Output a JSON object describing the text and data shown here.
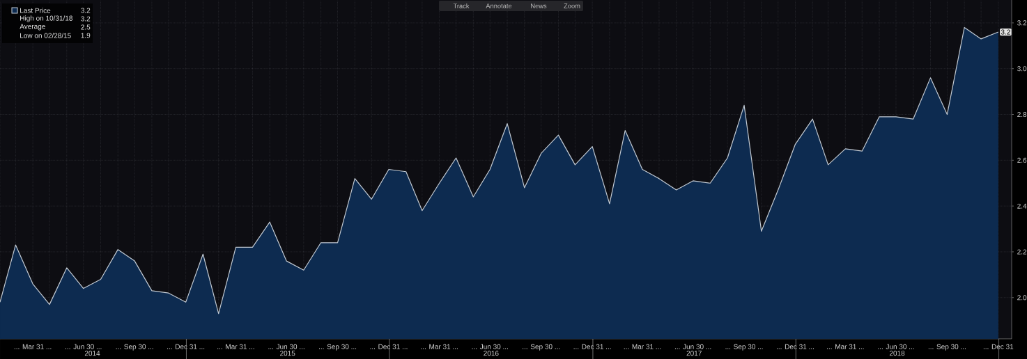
{
  "chart_data": {
    "type": "area",
    "x": [
      "2014-01-31",
      "2014-02-28",
      "2014-03-31",
      "2014-04-30",
      "2014-05-31",
      "2014-06-30",
      "2014-07-31",
      "2014-08-31",
      "2014-09-30",
      "2014-10-31",
      "2014-11-30",
      "2014-12-31",
      "2015-01-31",
      "2015-02-28",
      "2015-03-31",
      "2015-04-30",
      "2015-05-31",
      "2015-06-30",
      "2015-07-31",
      "2015-08-31",
      "2015-09-30",
      "2015-10-31",
      "2015-11-30",
      "2015-12-31",
      "2016-01-31",
      "2016-02-29",
      "2016-03-31",
      "2016-04-30",
      "2016-05-31",
      "2016-06-30",
      "2016-07-31",
      "2016-08-31",
      "2016-09-30",
      "2016-10-31",
      "2016-11-30",
      "2016-12-31",
      "2017-01-31",
      "2017-02-28",
      "2017-03-31",
      "2017-04-30",
      "2017-05-31",
      "2017-06-30",
      "2017-07-31",
      "2017-08-31",
      "2017-09-30",
      "2017-10-31",
      "2017-11-30",
      "2017-12-31",
      "2018-01-31",
      "2018-02-28",
      "2018-03-31",
      "2018-04-30",
      "2018-05-31",
      "2018-06-30",
      "2018-07-31",
      "2018-08-31",
      "2018-09-30",
      "2018-10-31",
      "2018-11-30",
      "2018-12-31"
    ],
    "series": [
      {
        "name": "Last Price",
        "color": "#0d2b50",
        "values": [
          1.98,
          2.23,
          2.06,
          1.97,
          2.13,
          2.04,
          2.08,
          2.21,
          2.16,
          2.03,
          2.02,
          1.98,
          2.19,
          1.93,
          2.22,
          2.22,
          2.33,
          2.16,
          2.12,
          2.24,
          2.24,
          2.52,
          2.43,
          2.56,
          2.55,
          2.38,
          2.5,
          2.61,
          2.44,
          2.56,
          2.76,
          2.48,
          2.63,
          2.71,
          2.58,
          2.66,
          2.41,
          2.73,
          2.56,
          2.52,
          2.47,
          2.51,
          2.5,
          2.61,
          2.84,
          2.29,
          2.47,
          2.67,
          2.78,
          2.58,
          2.65,
          2.64,
          2.79,
          2.79,
          2.78,
          2.96,
          2.8,
          3.18,
          3.13,
          3.16
        ],
        "value_labels": [
          null,
          null,
          null,
          null,
          null,
          null,
          null,
          null,
          null,
          null,
          null,
          null,
          null,
          null,
          null,
          null,
          null,
          null,
          null,
          null,
          null,
          null,
          null,
          null,
          null,
          null,
          null,
          null,
          null,
          null,
          null,
          null,
          null,
          null,
          null,
          null,
          null,
          null,
          null,
          null,
          null,
          null,
          null,
          null,
          null,
          null,
          null,
          null,
          null,
          null,
          null,
          null,
          null,
          null,
          null,
          null,
          null,
          null,
          null,
          "3.2"
        ]
      }
    ],
    "xlim": [
      "2014-01-31",
      "2019-01-24"
    ],
    "xticks": [
      {
        "value": "2014-01-31",
        "label": null
      },
      {
        "value": "2014-02-28",
        "label": null
      },
      {
        "value": "2014-03-31",
        "label": "... Mar 31 ..."
      },
      {
        "value": "2014-04-30",
        "label": null
      },
      {
        "value": "2014-05-31",
        "label": null
      },
      {
        "value": "2014-06-30",
        "label": "... Jun 30 ..."
      },
      {
        "value": "2014-07-31",
        "label": null
      },
      {
        "value": "2014-08-31",
        "label": null
      },
      {
        "value": "2014-09-30",
        "label": "... Sep 30 ..."
      },
      {
        "value": "2014-10-31",
        "label": null
      },
      {
        "value": "2014-11-30",
        "label": null
      },
      {
        "value": "2014-12-31",
        "label": "... Dec 31 ..."
      },
      {
        "value": "2015-01-31",
        "label": null
      },
      {
        "value": "2015-02-28",
        "label": null
      },
      {
        "value": "2015-03-31",
        "label": "... Mar 31 ..."
      },
      {
        "value": "2015-04-30",
        "label": null
      },
      {
        "value": "2015-05-31",
        "label": null
      },
      {
        "value": "2015-06-30",
        "label": "... Jun 30 ..."
      },
      {
        "value": "2015-07-31",
        "label": null
      },
      {
        "value": "2015-08-31",
        "label": null
      },
      {
        "value": "2015-09-30",
        "label": "... Sep 30 ..."
      },
      {
        "value": "2015-10-31",
        "label": null
      },
      {
        "value": "2015-11-30",
        "label": null
      },
      {
        "value": "2015-12-31",
        "label": "... Dec 31 ..."
      },
      {
        "value": "2016-01-31",
        "label": null
      },
      {
        "value": "2016-02-29",
        "label": null
      },
      {
        "value": "2016-03-31",
        "label": "... Mar 31 ..."
      },
      {
        "value": "2016-04-30",
        "label": null
      },
      {
        "value": "2016-05-31",
        "label": null
      },
      {
        "value": "2016-06-30",
        "label": "... Jun 30 ..."
      },
      {
        "value": "2016-07-31",
        "label": null
      },
      {
        "value": "2016-08-31",
        "label": null
      },
      {
        "value": "2016-09-30",
        "label": "... Sep 30 ..."
      },
      {
        "value": "2016-10-31",
        "label": null
      },
      {
        "value": "2016-11-30",
        "label": null
      },
      {
        "value": "2016-12-31",
        "label": "... Dec 31 ..."
      },
      {
        "value": "2017-01-31",
        "label": null
      },
      {
        "value": "2017-02-28",
        "label": null
      },
      {
        "value": "2017-03-31",
        "label": "... Mar 31 ..."
      },
      {
        "value": "2017-04-30",
        "label": null
      },
      {
        "value": "2017-05-31",
        "label": null
      },
      {
        "value": "2017-06-30",
        "label": "... Jun 30 ..."
      },
      {
        "value": "2017-07-31",
        "label": null
      },
      {
        "value": "2017-08-31",
        "label": null
      },
      {
        "value": "2017-09-30",
        "label": "... Sep 30 ..."
      },
      {
        "value": "2017-10-31",
        "label": null
      },
      {
        "value": "2017-11-30",
        "label": null
      },
      {
        "value": "2017-12-31",
        "label": "... Dec 31 ..."
      },
      {
        "value": "2018-01-31",
        "label": null
      },
      {
        "value": "2018-02-28",
        "label": null
      },
      {
        "value": "2018-03-31",
        "label": "... Mar 31 ..."
      },
      {
        "value": "2018-04-30",
        "label": null
      },
      {
        "value": "2018-05-31",
        "label": null
      },
      {
        "value": "2018-06-30",
        "label": "... Jun 30 ..."
      },
      {
        "value": "2018-07-31",
        "label": null
      },
      {
        "value": "2018-08-31",
        "label": null
      },
      {
        "value": "2018-09-30",
        "label": "... Sep 30 ..."
      },
      {
        "value": "2018-10-31",
        "label": null
      },
      {
        "value": "2018-11-30",
        "label": null
      },
      {
        "value": "2018-12-31",
        "label": "... Dec 31"
      }
    ],
    "x2lim": [
      "2014-01-31",
      "2019-01-24"
    ],
    "x2ticks": [
      {
        "value": "2014-07-16",
        "label": "2014"
      },
      {
        "value": "2015-01-01",
        "label": null
      },
      {
        "value": "2015-07-02",
        "label": "2015"
      },
      {
        "value": "2016-01-01",
        "label": null
      },
      {
        "value": "2016-07-02",
        "label": "2016"
      },
      {
        "value": "2017-01-01",
        "label": null
      },
      {
        "value": "2017-07-02",
        "label": "2017"
      },
      {
        "value": "2018-01-01",
        "label": null
      },
      {
        "value": "2018-07-02",
        "label": "2018"
      },
      {
        "value": "2019-01-01",
        "label": null
      }
    ],
    "ylim": [
      1.82,
      3.3
    ],
    "yticks": [
      {
        "value": 2.0,
        "label": "2.0"
      },
      {
        "value": 2.2,
        "label": "2.2"
      },
      {
        "value": 2.4,
        "label": "2.4"
      },
      {
        "value": 2.6,
        "label": "2.6"
      },
      {
        "value": 2.8,
        "label": "2.8"
      },
      {
        "value": 3.0,
        "label": "3.0"
      },
      {
        "value": 3.2,
        "label": "3.2"
      }
    ],
    "grid": true,
    "legend": "top left",
    "annotations": [
      "3.2",
      "High on 10/31/18",
      "3.2",
      "Average",
      "2.5",
      "Low on 02/28/15",
      "1.9",
      "Track",
      "Annotate",
      "News",
      "Zoom"
    ]
  }
}
